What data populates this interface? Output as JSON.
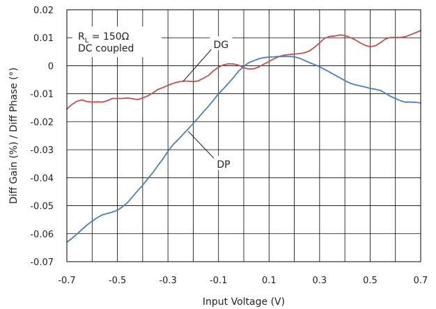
{
  "chart_data": {
    "type": "line",
    "xlabel": "Input Voltage (V)",
    "ylabel": "Diff Gain (%) / Diff Phase (°)",
    "xlim": [
      -0.7,
      0.7
    ],
    "ylim": [
      -0.07,
      0.02
    ],
    "x_ticks": [
      -0.7,
      -0.6,
      -0.5,
      -0.4,
      -0.3,
      -0.2,
      -0.1,
      0,
      0.1,
      0.2,
      0.3,
      0.4,
      0.5,
      0.6,
      0.7
    ],
    "x_tick_labels": [
      "-0.7",
      "-0.5",
      "-0.3",
      "-0.1",
      "0.1",
      "0.3",
      "0.5",
      "0.7"
    ],
    "x_tick_label_values": [
      -0.7,
      -0.5,
      -0.3,
      -0.1,
      0.1,
      0.3,
      0.5,
      0.7
    ],
    "y_ticks": [
      0.02,
      0.01,
      0,
      -0.01,
      -0.02,
      -0.03,
      -0.04,
      -0.05,
      -0.06,
      -0.07
    ],
    "y_tick_labels": [
      "0.02",
      "0.01",
      "0",
      "-0.01",
      "-0.02",
      "-0.03",
      "-0.04",
      "-0.05",
      "-0.06",
      "-0.07"
    ],
    "grid": true,
    "annotation_box": {
      "line1_main": "R",
      "line1_sub": "L",
      "line1_rest": " = 150Ω",
      "line2": "DC coupled"
    },
    "series": [
      {
        "name": "DG",
        "color": "#c0504d",
        "x": [
          -0.7,
          -0.68,
          -0.66,
          -0.64,
          -0.62,
          -0.6,
          -0.58,
          -0.56,
          -0.54,
          -0.52,
          -0.5,
          -0.48,
          -0.46,
          -0.44,
          -0.42,
          -0.4,
          -0.38,
          -0.36,
          -0.34,
          -0.32,
          -0.3,
          -0.28,
          -0.26,
          -0.24,
          -0.22,
          -0.2,
          -0.18,
          -0.16,
          -0.14,
          -0.12,
          -0.1,
          -0.08,
          -0.06,
          -0.04,
          -0.02,
          0,
          0.02,
          0.04,
          0.06,
          0.08,
          0.1,
          0.12,
          0.14,
          0.16,
          0.18,
          0.2,
          0.22,
          0.24,
          0.26,
          0.28,
          0.3,
          0.32,
          0.34,
          0.36,
          0.38,
          0.4,
          0.42,
          0.44,
          0.46,
          0.48,
          0.5,
          0.52,
          0.54,
          0.56,
          0.58,
          0.6,
          0.62,
          0.64,
          0.66,
          0.68,
          0.7
        ],
        "y": [
          -0.0155,
          -0.0138,
          -0.0127,
          -0.0122,
          -0.0128,
          -0.013,
          -0.0129,
          -0.013,
          -0.0125,
          -0.0117,
          -0.0117,
          -0.0117,
          -0.0115,
          -0.0118,
          -0.0121,
          -0.0115,
          -0.0108,
          -0.0097,
          -0.0085,
          -0.0078,
          -0.007,
          -0.0063,
          -0.0058,
          -0.0055,
          -0.0055,
          -0.0057,
          -0.0054,
          -0.0045,
          -0.0035,
          -0.0018,
          -0.0005,
          0.0003,
          0.0007,
          0.0006,
          0.0002,
          -0.0007,
          -0.0012,
          -0.0011,
          -0.0004,
          0.0006,
          0.0015,
          0.0025,
          0.0033,
          0.0038,
          0.004,
          0.0042,
          0.0043,
          0.0046,
          0.0053,
          0.0066,
          0.0082,
          0.0098,
          0.0105,
          0.0106,
          0.011,
          0.0108,
          0.0101,
          0.0093,
          0.0082,
          0.0073,
          0.0068,
          0.0071,
          0.0082,
          0.0095,
          0.0101,
          0.0101,
          0.0101,
          0.0104,
          0.0111,
          0.0118,
          0.0126
        ]
      },
      {
        "name": "DP",
        "color": "#4a7ebb",
        "x": [
          -0.7,
          -0.68,
          -0.66,
          -0.64,
          -0.62,
          -0.6,
          -0.58,
          -0.56,
          -0.54,
          -0.52,
          -0.5,
          -0.48,
          -0.46,
          -0.44,
          -0.42,
          -0.4,
          -0.38,
          -0.36,
          -0.34,
          -0.32,
          -0.3,
          -0.28,
          -0.26,
          -0.24,
          -0.22,
          -0.2,
          -0.18,
          -0.16,
          -0.14,
          -0.12,
          -0.1,
          -0.08,
          -0.06,
          -0.04,
          -0.02,
          0,
          0.02,
          0.04,
          0.06,
          0.08,
          0.1,
          0.12,
          0.14,
          0.16,
          0.18,
          0.2,
          0.22,
          0.24,
          0.26,
          0.28,
          0.3,
          0.32,
          0.34,
          0.36,
          0.38,
          0.4,
          0.42,
          0.44,
          0.46,
          0.48,
          0.5,
          0.52,
          0.54,
          0.56,
          0.58,
          0.6,
          0.62,
          0.64,
          0.66,
          0.68,
          0.7
        ],
        "y": [
          -0.063,
          -0.0617,
          -0.0601,
          -0.0585,
          -0.0569,
          -0.0555,
          -0.0543,
          -0.0533,
          -0.0528,
          -0.0523,
          -0.0516,
          -0.0504,
          -0.0489,
          -0.0468,
          -0.0447,
          -0.0427,
          -0.0404,
          -0.0382,
          -0.0357,
          -0.0333,
          -0.0306,
          -0.0282,
          -0.0264,
          -0.0245,
          -0.0226,
          -0.0206,
          -0.0186,
          -0.0165,
          -0.0145,
          -0.0123,
          -0.01,
          -0.0082,
          -0.0062,
          -0.0041,
          -0.0019,
          -0.0003,
          0.0011,
          0.0018,
          0.0025,
          0.0029,
          0.0031,
          0.0032,
          0.0033,
          0.0033,
          0.0033,
          0.0032,
          0.0027,
          0.0019,
          0.0011,
          0.0004,
          -0.0004,
          -0.0013,
          -0.0023,
          -0.0033,
          -0.0043,
          -0.0053,
          -0.0062,
          -0.0068,
          -0.0072,
          -0.0076,
          -0.0081,
          -0.0084,
          -0.0088,
          -0.0098,
          -0.0109,
          -0.0117,
          -0.0125,
          -0.013,
          -0.013,
          -0.0131,
          -0.0133
        ]
      }
    ],
    "callouts": [
      {
        "label": "DG",
        "target": [
          -0.24,
          -0.0056
        ],
        "text_at": [
          -0.09,
          0.0073
        ]
      },
      {
        "label": "DP",
        "target": [
          -0.22,
          -0.0234
        ],
        "text_at": [
          -0.08,
          -0.0355
        ]
      }
    ]
  }
}
